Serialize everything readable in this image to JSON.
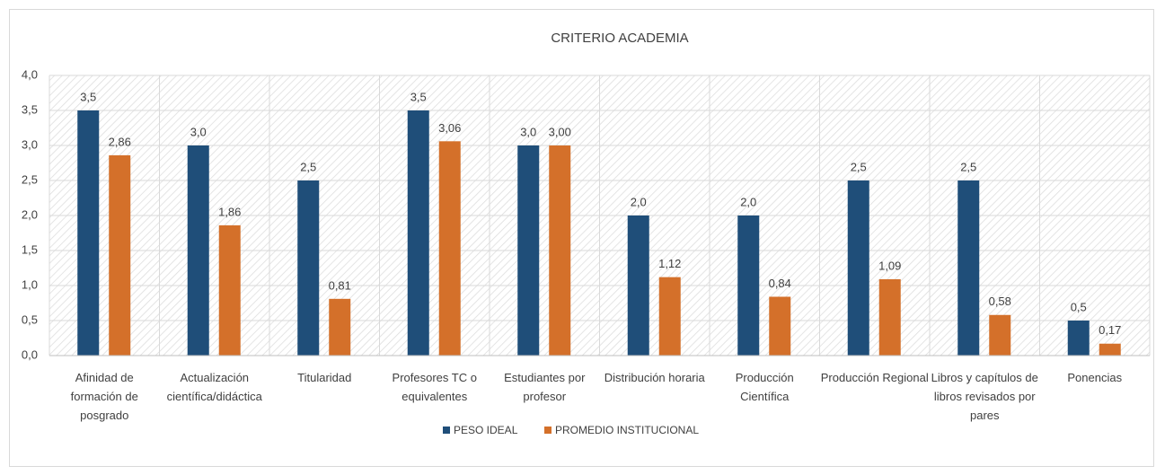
{
  "chart_data": {
    "type": "bar",
    "title": "CRITERIO ACADEMIA",
    "categories": [
      "Afinidad de formación de posgrado",
      "Actualización científica/didáctica",
      "Titularidad",
      "Profesores TC o equivalentes",
      "Estudiantes por profesor",
      "Distribución horaria",
      "Producción Científica",
      "Producción Regional",
      "Libros y capítulos de libros revisados por pares",
      "Ponencias"
    ],
    "series": [
      {
        "name": "PESO IDEAL",
        "color": "#1f4e79",
        "values": [
          3.5,
          3.0,
          2.5,
          3.5,
          3.0,
          2.0,
          2.0,
          2.5,
          2.5,
          0.5
        ],
        "value_labels": [
          "3,5",
          "3,0",
          "2,5",
          "3,5",
          "3,0",
          "2,0",
          "2,0",
          "2,5",
          "2,5",
          "0,5"
        ]
      },
      {
        "name": "PROMEDIO INSTITUCIONAL",
        "color": "#d4702a",
        "values": [
          2.86,
          1.86,
          0.81,
          3.06,
          3.0,
          1.12,
          0.84,
          1.09,
          0.58,
          0.17
        ],
        "value_labels": [
          "2,86",
          "1,86",
          "0,81",
          "3,06",
          "3,00",
          "1,12",
          "0,84",
          "1,09",
          "0,58",
          "0,17"
        ]
      }
    ],
    "ylim": [
      0,
      4
    ],
    "yticks": [
      {
        "value": 0,
        "label": "0,0"
      },
      {
        "value": 0.5,
        "label": "0,5"
      },
      {
        "value": 1,
        "label": "1,0"
      },
      {
        "value": 1.5,
        "label": "1,5"
      },
      {
        "value": 2,
        "label": "2,0"
      },
      {
        "value": 2.5,
        "label": "2,5"
      },
      {
        "value": 3,
        "label": "3,0"
      },
      {
        "value": 3.5,
        "label": "3,5"
      },
      {
        "value": 4,
        "label": "4,0"
      }
    ],
    "grid": true,
    "legend": "bottom"
  }
}
